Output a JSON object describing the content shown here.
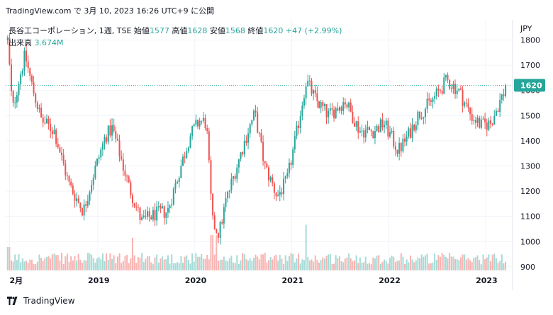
{
  "header": {
    "text": "TradingView.com で 3月 10, 2023 16:26 UTC+9 に公開"
  },
  "legend": {
    "symbol": "長谷工コーポレーション, 1週, TSE",
    "open_label": "始値",
    "open": "1577",
    "high_label": "高値",
    "high": "1628",
    "low_label": "安値",
    "low": "1568",
    "close_label": "終値",
    "close": "1620",
    "change": "+47 (+2.99%)",
    "volume_label": "出来高",
    "volume": "3.674M"
  },
  "colors": {
    "up": "#26a69a",
    "down": "#ef5350",
    "grid": "#f0f3fa",
    "last_line": "#26a69a",
    "last_bg": "#26a69a"
  },
  "footer": {
    "brand": "TradingView"
  },
  "chart_data": {
    "type": "candlestick",
    "currency_label": "JPY",
    "last_price": 1620,
    "ylim": [
      880,
      1880
    ],
    "y_ticks": [
      900,
      1000,
      1100,
      1200,
      1300,
      1400,
      1500,
      1600,
      1700,
      1800
    ],
    "x_ticks": [
      {
        "label": "2月",
        "t": 2018.09
      },
      {
        "label": "2019",
        "t": 2019.0
      },
      {
        "label": "2020",
        "t": 2020.0
      },
      {
        "label": "2021",
        "t": 2021.0
      },
      {
        "label": "2022",
        "t": 2022.0
      },
      {
        "label": "2023",
        "t": 2023.0
      }
    ],
    "xlim": [
      2018.05,
      2023.27
    ],
    "price_path": [
      [
        2018.07,
        1800
      ],
      [
        2018.12,
        1520
      ],
      [
        2018.18,
        1630
      ],
      [
        2018.25,
        1740
      ],
      [
        2018.32,
        1620
      ],
      [
        2018.42,
        1480
      ],
      [
        2018.55,
        1440
      ],
      [
        2018.7,
        1230
      ],
      [
        2018.85,
        1120
      ],
      [
        2018.95,
        1260
      ],
      [
        2019.08,
        1420
      ],
      [
        2019.15,
        1450
      ],
      [
        2019.32,
        1220
      ],
      [
        2019.45,
        1080
      ],
      [
        2019.6,
        1110
      ],
      [
        2019.72,
        1120
      ],
      [
        2019.85,
        1290
      ],
      [
        2019.95,
        1420
      ],
      [
        2020.05,
        1480
      ],
      [
        2020.12,
        1470
      ],
      [
        2020.18,
        1080
      ],
      [
        2020.25,
        1030
      ],
      [
        2020.32,
        1160
      ],
      [
        2020.45,
        1320
      ],
      [
        2020.55,
        1440
      ],
      [
        2020.62,
        1510
      ],
      [
        2020.72,
        1300
      ],
      [
        2020.85,
        1180
      ],
      [
        2020.95,
        1240
      ],
      [
        2021.05,
        1430
      ],
      [
        2021.15,
        1640
      ],
      [
        2021.25,
        1560
      ],
      [
        2021.38,
        1500
      ],
      [
        2021.55,
        1560
      ],
      [
        2021.7,
        1440
      ],
      [
        2021.85,
        1440
      ],
      [
        2021.95,
        1470
      ],
      [
        2022.1,
        1360
      ],
      [
        2022.2,
        1420
      ],
      [
        2022.3,
        1500
      ],
      [
        2022.45,
        1560
      ],
      [
        2022.6,
        1640
      ],
      [
        2022.72,
        1600
      ],
      [
        2022.85,
        1500
      ],
      [
        2022.95,
        1460
      ],
      [
        2023.05,
        1470
      ],
      [
        2023.15,
        1560
      ],
      [
        2023.22,
        1620
      ]
    ],
    "volume_scale_max": 9.0
  }
}
